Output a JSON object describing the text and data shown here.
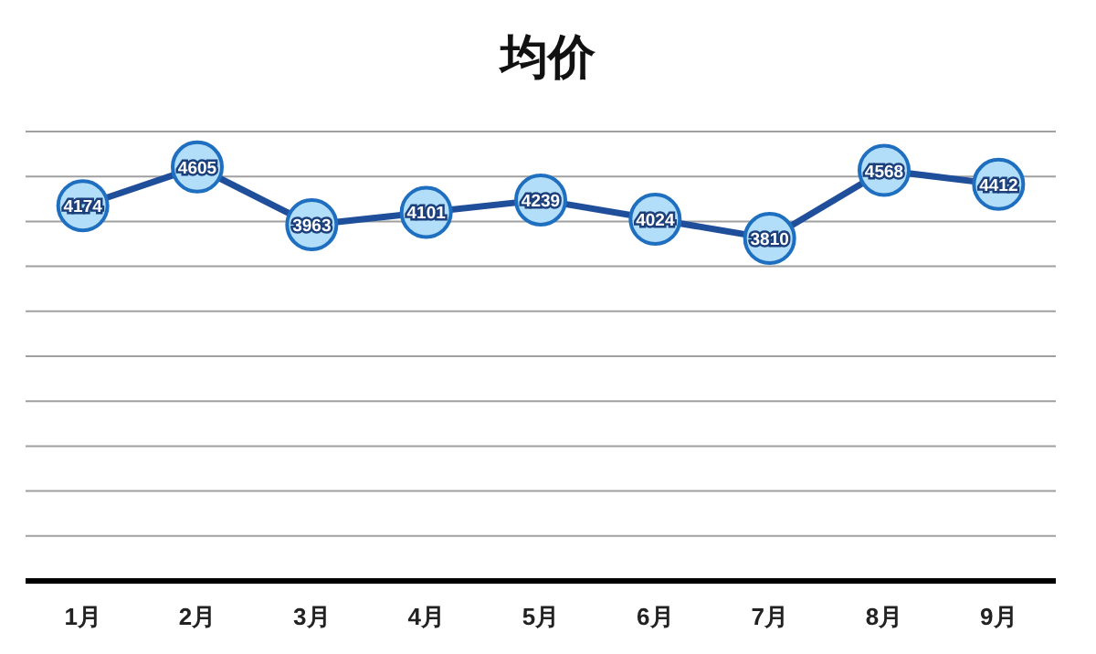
{
  "chart_data": {
    "type": "line",
    "title": "均价",
    "categories": [
      "1月",
      "2月",
      "3月",
      "4月",
      "5月",
      "6月",
      "7月",
      "8月",
      "9月"
    ],
    "series": [
      {
        "color": "#1f4e9a",
        "values": [
          4174,
          4605,
          3963,
          4101,
          4239,
          4024,
          3810,
          4568,
          4412
        ]
      }
    ],
    "ylim": [
      0,
      5000
    ],
    "yticks": [
      {
        "value": 0,
        "label": null
      },
      {
        "value": 500,
        "label": null
      },
      {
        "value": 1000,
        "label": null
      },
      {
        "value": 1500,
        "label": null
      },
      {
        "value": 2000,
        "label": null
      },
      {
        "value": 2500,
        "label": null
      },
      {
        "value": 3000,
        "label": null
      },
      {
        "value": 3500,
        "label": null
      },
      {
        "value": 4000,
        "label": null
      },
      {
        "value": 4500,
        "label": null
      },
      {
        "value": 5000,
        "label": null
      }
    ],
    "grid": "y",
    "marker": "circle",
    "data_labels": true
  }
}
